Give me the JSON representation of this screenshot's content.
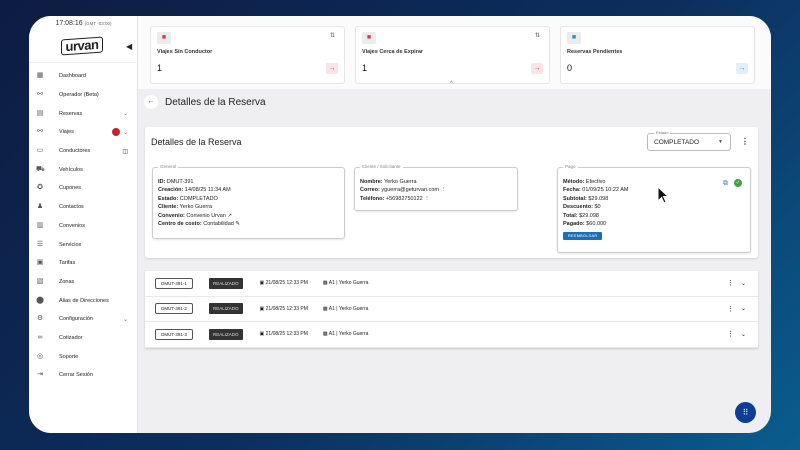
{
  "sidebar": {
    "clock": "17:08:16",
    "tz": "(GMT -03:00)",
    "logo": "urvan",
    "items": [
      {
        "label": "Dashboard",
        "icon": "dashboard-icon"
      },
      {
        "label": "Operador (Beta)",
        "icon": "route-icon"
      },
      {
        "label": "Reservas",
        "icon": "book-icon",
        "expand": true
      },
      {
        "label": "Viajes",
        "icon": "route-icon",
        "expand": true,
        "badge": true
      },
      {
        "label": "Conductores",
        "icon": "id-card-icon",
        "external": true
      },
      {
        "label": "Vehículos",
        "icon": "car-icon"
      },
      {
        "label": "Cupones",
        "icon": "coupon-icon"
      },
      {
        "label": "Contactos",
        "icon": "contacts-icon"
      },
      {
        "label": "Convenios",
        "icon": "building-icon"
      },
      {
        "label": "Servicios",
        "icon": "services-icon"
      },
      {
        "label": "Tarifas",
        "icon": "tariff-icon"
      },
      {
        "label": "Zonas",
        "icon": "map-icon"
      },
      {
        "label": "Alias de Direcciones",
        "icon": "pin-icon"
      },
      {
        "label": "Configuración",
        "icon": "gear-icon",
        "expand": true
      },
      {
        "label": "Cotizador",
        "icon": "link-icon"
      },
      {
        "label": "Soporte",
        "icon": "support-icon"
      },
      {
        "label": "Cerrar Sesión",
        "icon": "logout-icon"
      }
    ]
  },
  "kpis": [
    {
      "label": "Viajes Sin Conductor",
      "value": "1",
      "color": "#d9334a"
    },
    {
      "label": "Viajes Cerca de Expirar",
      "value": "1",
      "color": "#d9334a"
    },
    {
      "label": "Reservas Pendientes",
      "value": "0",
      "color": "#2a86c9"
    }
  ],
  "page_title": "Detalles de la Reserva",
  "card": {
    "title": "Detalles de la Reserva",
    "estado_label": "Estado",
    "estado_value": "COMPLETADO",
    "general": {
      "legend": "General",
      "id_l": "ID:",
      "id": "DMUT-391",
      "cre_l": "Creación:",
      "cre": "14/08/25 11:34 AM",
      "est_l": "Estado:",
      "est": "COMPLETADO",
      "cli_l": "Cliente:",
      "cli": "Yerko Guerra",
      "conv_l": "Convenio:",
      "conv": "Convenio Urvan",
      "cc_l": "Centro de costo:",
      "cc": "Contabilidad"
    },
    "cliente": {
      "legend": "Cliente / Solicitante",
      "nom_l": "Nombre:",
      "nom": "Yerko Guerra",
      "cor_l": "Correo:",
      "cor": "yguerra@geturvan.com",
      "tel_l": "Teléfono:",
      "tel": "+56982750122"
    },
    "pago": {
      "legend": "Pago",
      "met_l": "Método:",
      "met": "Efectivo",
      "fec_l": "Fecha:",
      "fec": "01/09/25 10:22 AM",
      "sub_l": "Subtotal:",
      "sub": "$29.098",
      "des_l": "Descuento:",
      "des": "$0",
      "tot_l": "Total:",
      "tot": "$29.098",
      "pag_l": "Pagado:",
      "pag": "$60.000",
      "refund": "REEMBOLSAR"
    }
  },
  "trips": [
    {
      "code": "DMUT-391-1",
      "status": "REALIZADO",
      "date": "21/08/25 12:33 PM",
      "driver": "A1 | Yerko Guerra"
    },
    {
      "code": "DMUT-391-2",
      "status": "REALIZADO",
      "date": "21/08/25 12:33 PM",
      "driver": "A1 | Yerko Guerra"
    },
    {
      "code": "DMUT-391-3",
      "status": "REALIZADO",
      "date": "21/08/25 12:33 PM",
      "driver": "A1 | Yerko Guerra"
    }
  ]
}
